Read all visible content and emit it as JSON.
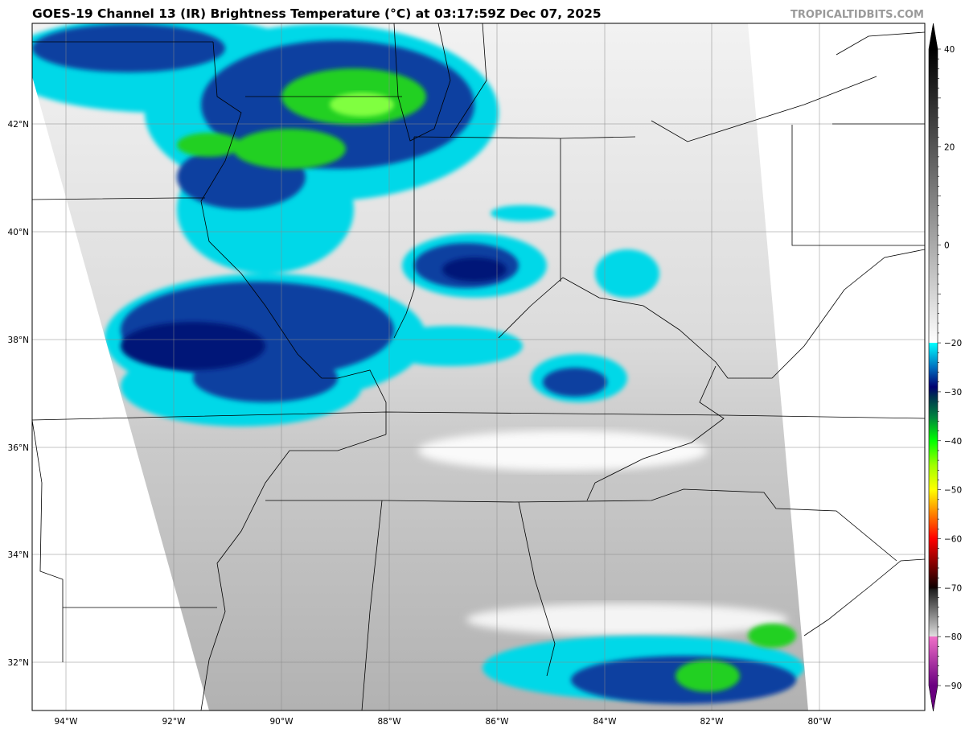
{
  "header": {
    "title": "GOES-19 Channel 13 (IR) Brightness Temperature (°C) at 03:17:59Z Dec 07, 2025",
    "watermark": "TROPICALTIDBITS.COM"
  },
  "map": {
    "longitude_labels": [
      "94°W",
      "92°W",
      "90°W",
      "88°W",
      "86°W",
      "84°W",
      "82°W",
      "80°W"
    ],
    "latitude_labels": [
      "42°N",
      "40°N",
      "38°N",
      "36°N",
      "34°N",
      "32°N"
    ]
  },
  "colorbar": {
    "ticks": [
      "40",
      "20",
      "0",
      "−20",
      "−30",
      "−40",
      "−50",
      "−60",
      "−70",
      "−80",
      "−90"
    ],
    "tick_values": [
      40,
      20,
      0,
      -20,
      -30,
      -40,
      -50,
      -60,
      -70,
      -80,
      -90
    ],
    "range": [
      -90,
      40
    ],
    "stops": [
      {
        "value": -90,
        "color": "#6a0080"
      },
      {
        "value": -80.01,
        "color": "#f070c8"
      },
      {
        "value": -80,
        "color": "#e0e0e0"
      },
      {
        "value": -70.5,
        "color": "#202020"
      },
      {
        "value": -70,
        "color": "#100000"
      },
      {
        "value": -60,
        "color": "#ff0000"
      },
      {
        "value": -55,
        "color": "#ff8000"
      },
      {
        "value": -50,
        "color": "#ffff00"
      },
      {
        "value": -45,
        "color": "#a0ff00"
      },
      {
        "value": -40,
        "color": "#00ff00"
      },
      {
        "value": -35,
        "color": "#008040"
      },
      {
        "value": -31,
        "color": "#003050"
      },
      {
        "value": -29,
        "color": "#000070"
      },
      {
        "value": -25,
        "color": "#0070c0"
      },
      {
        "value": -20.01,
        "color": "#00ffff"
      },
      {
        "value": -20,
        "color": "#ffffff"
      },
      {
        "value": 40,
        "color": "#000000"
      }
    ]
  }
}
